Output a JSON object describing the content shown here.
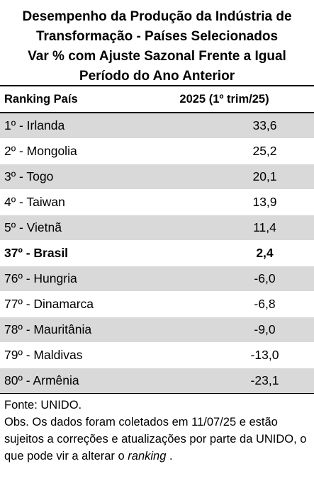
{
  "chart_data": {
    "type": "table",
    "title_lines": [
      "Desempenho da Produção da Indústria de",
      "Transformação - Países Selecionados",
      "Var % com Ajuste Sazonal Frente a Igual",
      "Período do Ano Anterior"
    ],
    "columns": [
      "Ranking País",
      "2025 (1º trim/25)"
    ],
    "rows": [
      {
        "label": "1º - Irlanda",
        "value": "33,6",
        "shaded": true,
        "bold": false
      },
      {
        "label": "2º - Mongolia",
        "value": "25,2",
        "shaded": false,
        "bold": false
      },
      {
        "label": "3º - Togo",
        "value": "20,1",
        "shaded": true,
        "bold": false
      },
      {
        "label": "4º - Taiwan",
        "value": "13,9",
        "shaded": false,
        "bold": false
      },
      {
        "label": "5º - Vietnã",
        "value": "11,4",
        "shaded": true,
        "bold": false
      },
      {
        "label": "37º - Brasil",
        "value": "2,4",
        "shaded": false,
        "bold": true
      },
      {
        "label": "76º - Hungria",
        "value": "-6,0",
        "shaded": true,
        "bold": false
      },
      {
        "label": "77º - Dinamarca",
        "value": "-6,8",
        "shaded": false,
        "bold": false
      },
      {
        "label": "78º - Mauritânia",
        "value": "-9,0",
        "shaded": true,
        "bold": false
      },
      {
        "label": "79º - Maldivas",
        "value": "-13,0",
        "shaded": false,
        "bold": false
      },
      {
        "label": "80º - Armênia",
        "value": "-23,1",
        "shaded": true,
        "bold": false
      }
    ],
    "source": "Fonte: UNIDO.",
    "note_text": "Obs. Os dados foram coletados em 11/07/25 e estão sujeitos a correções e atualizações por parte da UNIDO, o que pode vir a alterar o",
    "note_emphasis": "ranking",
    "note_end": " ."
  }
}
